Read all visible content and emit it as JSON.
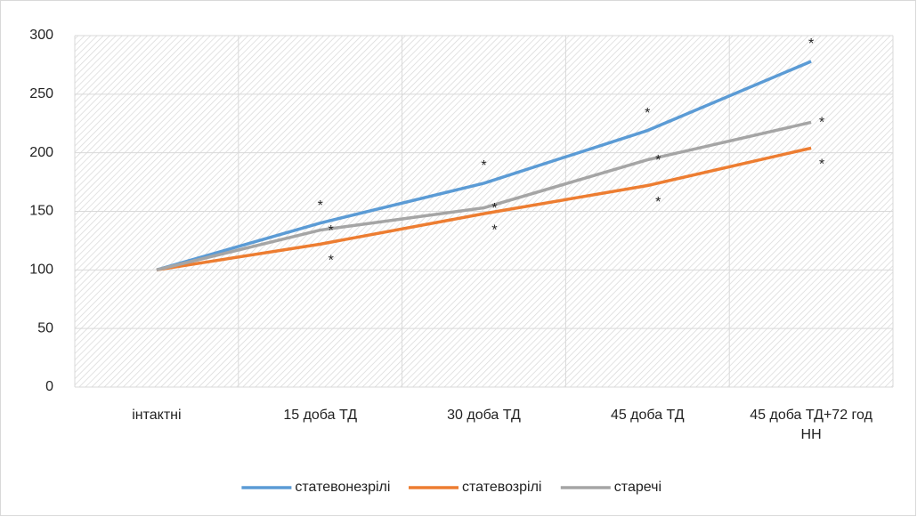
{
  "chart_data": {
    "type": "line",
    "categories": [
      "інтактні",
      "15 доба ТД",
      "30 доба ТД",
      "45 доба ТД",
      "45 доба ТД+72 год НН"
    ],
    "series": [
      {
        "name": "статевонезрілі",
        "color": "#5b9bd5",
        "values": [
          100,
          140,
          174,
          219,
          278
        ]
      },
      {
        "name": "статевозрілі",
        "color": "#ed7d31",
        "values": [
          100,
          122,
          148,
          172,
          204
        ]
      },
      {
        "name": "старечі",
        "color": "#a5a5a5",
        "values": [
          100,
          134,
          153,
          194,
          226
        ]
      }
    ],
    "ylim": [
      0,
      300
    ],
    "yticks": [
      0,
      50,
      100,
      150,
      200,
      250,
      300
    ],
    "grid": true,
    "legend": "bottom",
    "annotations": [
      {
        "text": "*",
        "series": 0,
        "index": 1
      },
      {
        "text": "*",
        "series": 2,
        "index": 1
      },
      {
        "text": "*",
        "series": 1,
        "index": 1
      },
      {
        "text": "*",
        "series": 0,
        "index": 2
      },
      {
        "text": "*",
        "series": 2,
        "index": 2
      },
      {
        "text": "*",
        "series": 1,
        "index": 2
      },
      {
        "text": "*",
        "series": 0,
        "index": 3
      },
      {
        "text": "*",
        "series": 2,
        "index": 3
      },
      {
        "text": "*",
        "series": 1,
        "index": 3
      },
      {
        "text": "*",
        "series": 0,
        "index": 4
      },
      {
        "text": "*",
        "series": 2,
        "index": 4
      },
      {
        "text": "*",
        "series": 1,
        "index": 4
      }
    ]
  }
}
